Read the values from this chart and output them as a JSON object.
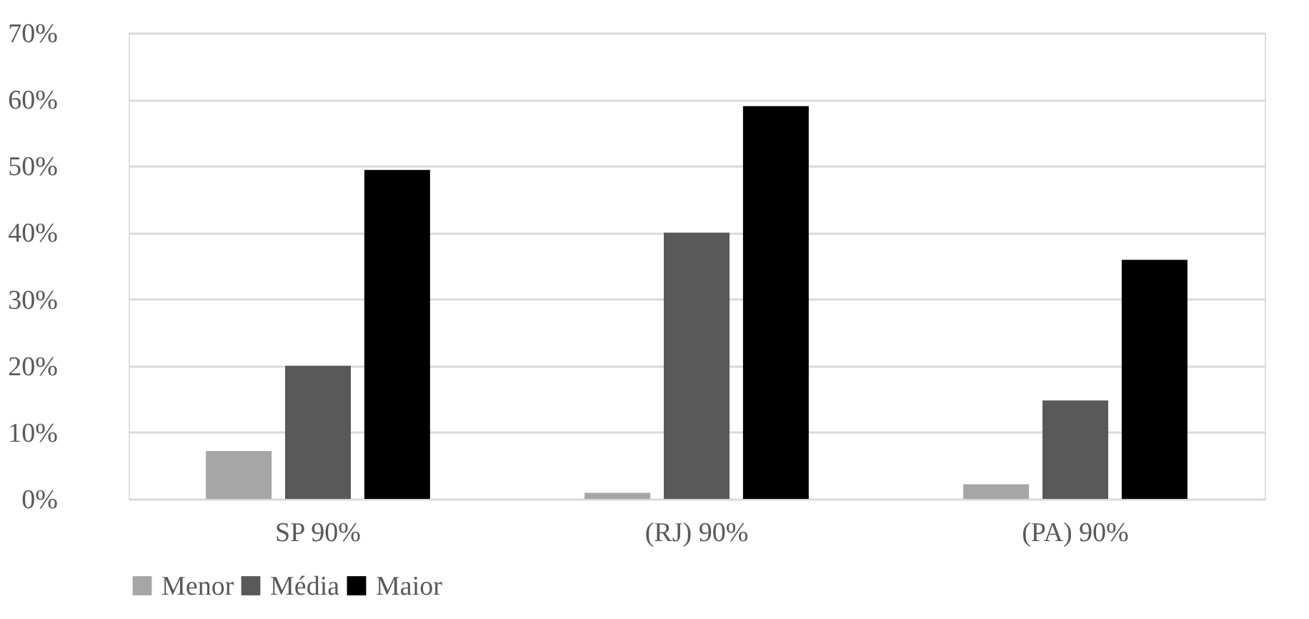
{
  "chart_data": {
    "type": "bar",
    "categories": [
      "SP 90%",
      "(RJ) 90%",
      "(PA) 90%"
    ],
    "series": [
      {
        "name": "Menor",
        "color": "#a6a6a6",
        "values": [
          7.2,
          0.9,
          2.2
        ]
      },
      {
        "name": "Média",
        "color": "#595959",
        "values": [
          20.0,
          40.0,
          14.8
        ]
      },
      {
        "name": "Maior",
        "color": "#000000",
        "values": [
          49.4,
          59.0,
          35.9
        ]
      }
    ],
    "ylim": [
      0,
      70
    ],
    "yticks": [
      {
        "value": 0,
        "label": "0%"
      },
      {
        "value": 10,
        "label": "10%"
      },
      {
        "value": 20,
        "label": "20%"
      },
      {
        "value": 30,
        "label": "30%"
      },
      {
        "value": 40,
        "label": "40%"
      },
      {
        "value": 50,
        "label": "50%"
      },
      {
        "value": 60,
        "label": "60%"
      },
      {
        "value": 70,
        "label": "70%"
      }
    ],
    "grid": "y",
    "legend": "bottom"
  }
}
